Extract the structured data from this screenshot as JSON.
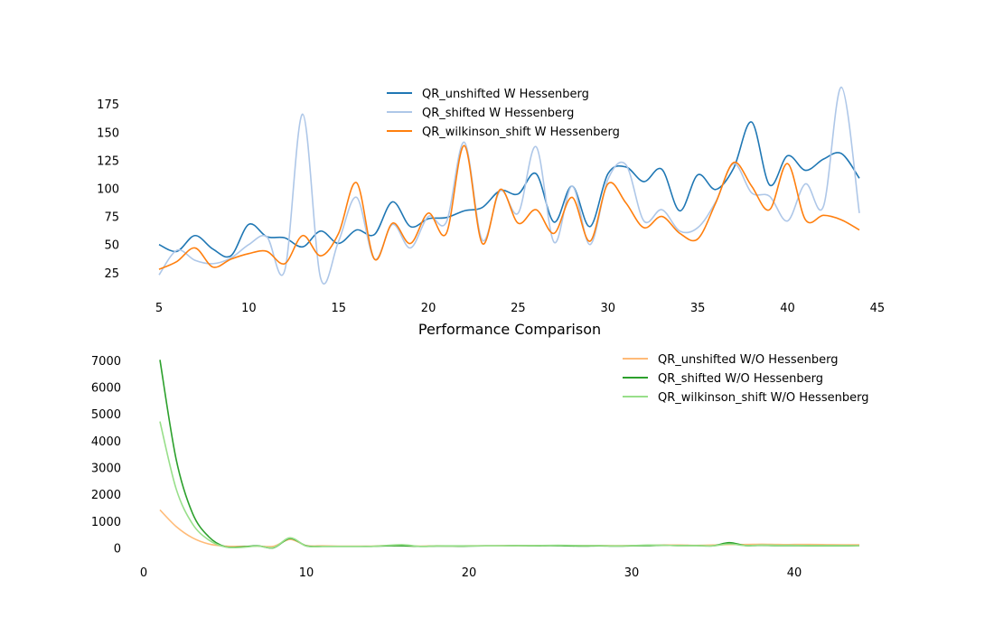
{
  "title": "Performance Comparison",
  "chart_data": [
    {
      "type": "line",
      "xlim": [
        5,
        44
      ],
      "ylim": [
        12,
        192
      ],
      "x_ticks": [
        5,
        10,
        15,
        20,
        25,
        30,
        35,
        40,
        45
      ],
      "y_ticks": [
        25,
        50,
        75,
        100,
        125,
        150,
        175
      ],
      "legend_position": "top-center",
      "grid": false,
      "x": [
        5,
        6,
        7,
        8,
        9,
        10,
        11,
        12,
        13,
        14,
        15,
        16,
        17,
        18,
        19,
        20,
        21,
        22,
        23,
        24,
        25,
        26,
        27,
        28,
        29,
        30,
        31,
        32,
        33,
        34,
        35,
        36,
        37,
        38,
        39,
        40,
        41,
        42,
        43,
        44
      ],
      "series": [
        {
          "name": "QR_unshifted W Hessenberg",
          "color": "#1f77b4",
          "values": [
            50,
            44,
            58,
            46,
            40,
            68,
            57,
            56,
            48,
            62,
            51,
            63,
            59,
            88,
            66,
            73,
            74,
            80,
            83,
            98,
            95,
            113,
            70,
            102,
            66,
            113,
            119,
            106,
            117,
            80,
            112,
            99,
            118,
            159,
            103,
            129,
            116,
            126,
            131,
            109
          ]
        },
        {
          "name": "QR_shifted W Hessenberg",
          "color": "#aec7e8",
          "values": [
            23,
            45,
            36,
            33,
            38,
            50,
            57,
            27,
            166,
            20,
            53,
            92,
            37,
            68,
            47,
            75,
            70,
            141,
            54,
            98,
            78,
            137,
            52,
            102,
            50,
            108,
            121,
            71,
            81,
            62,
            65,
            88,
            122,
            96,
            93,
            71,
            104,
            84,
            190,
            78
          ]
        },
        {
          "name": "QR_wilkinson_shift W Hessenberg",
          "color": "#ff7f0e",
          "values": [
            28,
            35,
            47,
            30,
            37,
            42,
            44,
            33,
            58,
            40,
            60,
            105,
            37,
            69,
            51,
            78,
            60,
            138,
            51,
            99,
            69,
            81,
            60,
            92,
            53,
            104,
            87,
            65,
            75,
            60,
            55,
            87,
            123,
            102,
            81,
            122,
            72,
            76,
            72,
            63
          ]
        }
      ]
    },
    {
      "type": "line",
      "xlim": [
        0,
        45
      ],
      "ylim": [
        -250,
        7300
      ],
      "x_ticks": [
        0,
        10,
        20,
        30,
        40
      ],
      "y_ticks": [
        0,
        1000,
        2000,
        3000,
        4000,
        5000,
        6000,
        7000
      ],
      "legend_position": "top-right",
      "grid": false,
      "x": [
        1,
        2,
        3,
        4,
        5,
        6,
        7,
        8,
        9,
        10,
        11,
        12,
        13,
        14,
        15,
        16,
        17,
        18,
        19,
        20,
        21,
        22,
        23,
        24,
        25,
        26,
        27,
        28,
        29,
        30,
        31,
        32,
        33,
        34,
        35,
        36,
        37,
        38,
        39,
        40,
        41,
        42,
        43,
        44
      ],
      "series": [
        {
          "name": "QR_unshifted W/O Hessenberg",
          "color": "#ffbb78",
          "values": [
            1420,
            800,
            380,
            150,
            70,
            60,
            70,
            65,
            320,
            90,
            80,
            70,
            70,
            70,
            90,
            80,
            70,
            80,
            75,
            80,
            80,
            85,
            90,
            90,
            95,
            95,
            90,
            90,
            85,
            90,
            100,
            110,
            110,
            100,
            110,
            130,
            130,
            140,
            130,
            130,
            130,
            125,
            120,
            120
          ]
        },
        {
          "name": "QR_shifted W/O Hessenberg",
          "color": "#2ca02c",
          "values": [
            7020,
            3300,
            1300,
            420,
            50,
            40,
            80,
            10,
            360,
            80,
            60,
            60,
            60,
            60,
            80,
            80,
            60,
            70,
            70,
            70,
            80,
            80,
            90,
            80,
            90,
            80,
            70,
            80,
            70,
            80,
            90,
            100,
            90,
            90,
            80,
            200,
            90,
            100,
            90,
            90,
            80,
            80,
            80,
            80
          ]
        },
        {
          "name": "QR_wilkinson_shift W/O Hessenberg",
          "color": "#98df8a",
          "values": [
            4720,
            2200,
            900,
            300,
            40,
            20,
            70,
            20,
            380,
            70,
            60,
            60,
            60,
            60,
            100,
            120,
            60,
            80,
            80,
            80,
            80,
            80,
            90,
            90,
            100,
            100,
            90,
            90,
            80,
            90,
            110,
            100,
            90,
            90,
            80,
            150,
            90,
            110,
            100,
            100,
            90,
            90,
            90,
            80
          ]
        }
      ]
    }
  ]
}
